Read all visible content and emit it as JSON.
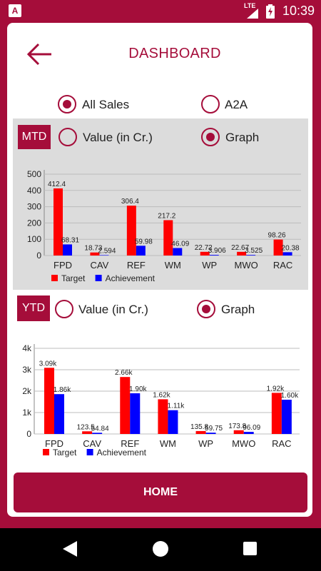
{
  "status_bar": {
    "app_icon_letter": "A",
    "network": "LTE",
    "time": "10:39"
  },
  "header": {
    "title": "DASHBOARD"
  },
  "sales_filter": {
    "all_sales_label": "All Sales",
    "a2a_label": "A2A",
    "selected": "All Sales"
  },
  "mtd": {
    "tag": "MTD",
    "value_label": "Value (in Cr.)",
    "graph_label": "Graph",
    "selected": "Graph",
    "chart_data": {
      "type": "bar",
      "categories": [
        "FPD",
        "CAV",
        "REF",
        "WM",
        "WP",
        "MWO",
        "RAC"
      ],
      "series": [
        {
          "name": "Target",
          "color": "#ff0000",
          "values": [
            412.4,
            18.73,
            306.4,
            217.2,
            22.72,
            22.67,
            98.26
          ]
        },
        {
          "name": "Achievement",
          "color": "#0000ff",
          "values": [
            68.31,
            2.594,
            59.98,
            46.09,
            3.906,
            3.525,
            20.38
          ]
        }
      ],
      "value_labels": [
        [
          "412.4",
          "18.73",
          "306.4",
          "217.2",
          "22.72",
          "22.67",
          "98.26"
        ],
        [
          "68.31",
          "2.594",
          "59.98",
          "46.09",
          "3.906",
          "3.525",
          "20.38"
        ]
      ],
      "y_ticks": [
        "0",
        "100",
        "200",
        "300",
        "400",
        "500"
      ],
      "ylim": [
        0,
        500
      ],
      "grid": true,
      "legend_position": "bottom-left"
    }
  },
  "ytd": {
    "tag": "YTD",
    "value_label": "Value (in Cr.)",
    "graph_label": "Graph",
    "selected": "Graph",
    "chart_data": {
      "type": "bar",
      "categories": [
        "FPD",
        "CAV",
        "REF",
        "WM",
        "WP",
        "MWO",
        "RAC"
      ],
      "series": [
        {
          "name": "Target",
          "color": "#ff0000",
          "values": [
            3090,
            123.5,
            2660,
            1620,
            135.8,
            173.8,
            1920
          ]
        },
        {
          "name": "Achievement",
          "color": "#0000ff",
          "values": [
            1860,
            54.84,
            1900,
            1110,
            59.75,
            96.09,
            1600
          ]
        }
      ],
      "value_labels": [
        [
          "3.09k",
          "123.5",
          "2.66k",
          "1.62k",
          "135.8",
          "173.8",
          "1.92k"
        ],
        [
          "1.86k",
          "54.84",
          "1.90k",
          "1.11k",
          "59.75",
          "96.09",
          "1.60k"
        ]
      ],
      "y_ticks": [
        "0",
        "1k",
        "2k",
        "3k",
        "4k"
      ],
      "ylim": [
        0,
        4000
      ],
      "grid": true,
      "legend_position": "bottom-left"
    }
  },
  "footer": {
    "home_label": "HOME"
  },
  "colors": {
    "brand": "#a50d3a",
    "panel": "#dcdcdc",
    "target": "#ff0000",
    "achievement": "#0000ff"
  },
  "nav_bar": {
    "icons": [
      "back-triangle-icon",
      "home-circle-icon",
      "recents-square-icon"
    ]
  }
}
